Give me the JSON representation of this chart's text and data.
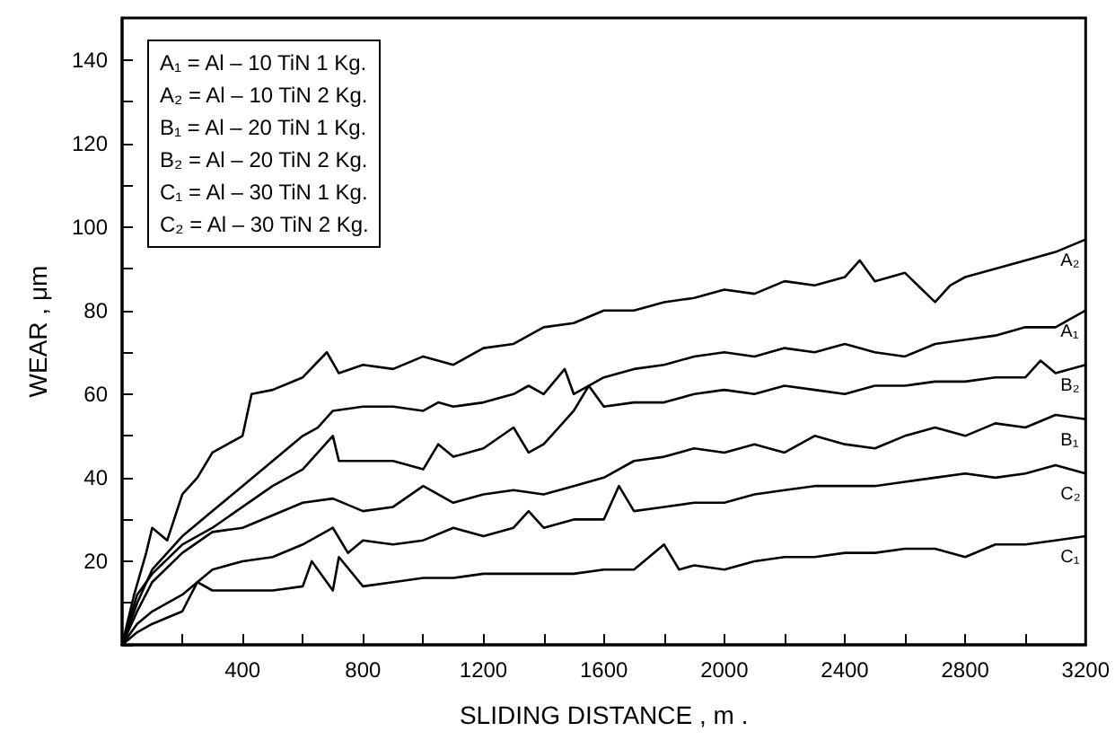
{
  "chart_data": {
    "type": "line",
    "xlabel": "SLIDING DISTANCE , m .",
    "ylabel": "WEAR , μm",
    "xlim": [
      0,
      3200
    ],
    "xticks": [
      {
        "value": 0,
        "label": null
      },
      {
        "value": 200,
        "label": null
      },
      400,
      {
        "value": 600,
        "label": null
      },
      800,
      {
        "value": 1000,
        "label": null
      },
      1200,
      {
        "value": 1400,
        "label": null
      },
      1600,
      {
        "value": 1800,
        "label": null
      },
      2000,
      {
        "value": 2200,
        "label": null
      },
      2400,
      {
        "value": 2600,
        "label": null
      },
      2800,
      {
        "value": 3000,
        "label": null
      },
      3200
    ],
    "ylim": [
      0,
      150
    ],
    "yticks": [
      {
        "value": 0,
        "label": null
      },
      {
        "value": 10,
        "label": null
      },
      20,
      {
        "value": 30,
        "label": null
      },
      40,
      {
        "value": 50,
        "label": null
      },
      60,
      {
        "value": 70,
        "label": null
      },
      80,
      {
        "value": 90,
        "label": null
      },
      100,
      {
        "value": 110,
        "label": null
      },
      120,
      {
        "value": 130,
        "label": null
      },
      140
    ],
    "grid": false,
    "legend": false,
    "marker": "none",
    "line_style": "solid",
    "annotations": [
      "A₁ = Al – 10 TiN 1 Kg.",
      "A₂ = Al – 10 TiN 2 Kg.",
      "B₁ = Al – 20 TiN 1 Kg.",
      "B₂ = Al – 20 TiN 2 Kg.",
      "C₁ = Al – 30 TiN 1 Kg.",
      "C₂ = Al – 30 TiN 2 Kg."
    ],
    "series": [
      {
        "name": "A₂",
        "color": "#000000",
        "x": [
          0,
          40,
          80,
          100,
          150,
          200,
          250,
          300,
          350,
          400,
          430,
          500,
          600,
          680,
          720,
          800,
          900,
          1000,
          1100,
          1200,
          1300,
          1400,
          1500,
          1600,
          1700,
          1800,
          1900,
          2000,
          2100,
          2200,
          2300,
          2400,
          2450,
          2500,
          2600,
          2700,
          2750,
          2800,
          2900,
          3000,
          3100,
          3200
        ],
        "values": [
          0,
          12,
          22,
          28,
          25,
          36,
          40,
          46,
          48,
          50,
          60,
          61,
          64,
          70,
          65,
          67,
          66,
          69,
          67,
          71,
          72,
          76,
          77,
          80,
          80,
          82,
          83,
          85,
          84,
          87,
          86,
          88,
          92,
          87,
          89,
          82,
          86,
          88,
          90,
          92,
          94,
          97
        ]
      },
      {
        "name": "A₁",
        "color": "#000000",
        "x": [
          0,
          50,
          100,
          200,
          300,
          400,
          500,
          600,
          650,
          700,
          800,
          900,
          1000,
          1050,
          1100,
          1200,
          1300,
          1350,
          1400,
          1470,
          1500,
          1600,
          1700,
          1800,
          1900,
          2000,
          2100,
          2200,
          2300,
          2400,
          2500,
          2600,
          2700,
          2800,
          2900,
          3000,
          3100,
          3200
        ],
        "values": [
          0,
          10,
          18,
          26,
          32,
          38,
          44,
          50,
          52,
          56,
          57,
          57,
          56,
          58,
          57,
          58,
          60,
          62,
          60,
          66,
          60,
          64,
          66,
          67,
          69,
          70,
          69,
          71,
          70,
          72,
          70,
          69,
          72,
          73,
          74,
          76,
          76,
          80
        ]
      },
      {
        "name": "B₂",
        "color": "#000000",
        "x": [
          0,
          50,
          100,
          200,
          300,
          400,
          500,
          600,
          700,
          720,
          800,
          900,
          1000,
          1050,
          1100,
          1200,
          1300,
          1350,
          1400,
          1450,
          1500,
          1550,
          1600,
          1700,
          1800,
          1900,
          2000,
          2100,
          2200,
          2300,
          2400,
          2500,
          2600,
          2700,
          2800,
          2900,
          3000,
          3050,
          3100,
          3200
        ],
        "values": [
          0,
          12,
          17,
          24,
          28,
          33,
          38,
          42,
          50,
          44,
          44,
          44,
          42,
          48,
          45,
          47,
          52,
          46,
          48,
          52,
          56,
          62,
          57,
          58,
          58,
          60,
          61,
          60,
          62,
          61,
          60,
          62,
          62,
          63,
          63,
          64,
          64,
          68,
          65,
          67
        ]
      },
      {
        "name": "B₁",
        "color": "#000000",
        "x": [
          0,
          50,
          100,
          200,
          300,
          400,
          500,
          600,
          700,
          800,
          900,
          1000,
          1100,
          1200,
          1300,
          1400,
          1500,
          1600,
          1700,
          1800,
          1900,
          2000,
          2100,
          2200,
          2300,
          2400,
          2500,
          2600,
          2700,
          2800,
          2900,
          3000,
          3100,
          3200
        ],
        "values": [
          0,
          8,
          15,
          22,
          27,
          28,
          31,
          34,
          35,
          32,
          33,
          38,
          34,
          36,
          37,
          36,
          38,
          40,
          44,
          45,
          47,
          46,
          48,
          46,
          50,
          48,
          47,
          50,
          52,
          50,
          53,
          52,
          55,
          54
        ]
      },
      {
        "name": "C₂",
        "color": "#000000",
        "x": [
          0,
          50,
          100,
          200,
          300,
          400,
          500,
          600,
          700,
          750,
          800,
          900,
          1000,
          1100,
          1200,
          1300,
          1350,
          1400,
          1500,
          1600,
          1650,
          1700,
          1800,
          1900,
          2000,
          2100,
          2200,
          2300,
          2400,
          2500,
          2600,
          2700,
          2800,
          2900,
          3000,
          3100,
          3200
        ],
        "values": [
          0,
          5,
          8,
          12,
          18,
          20,
          21,
          24,
          28,
          22,
          25,
          24,
          25,
          28,
          26,
          28,
          32,
          28,
          30,
          30,
          38,
          32,
          33,
          34,
          34,
          36,
          37,
          38,
          38,
          38,
          39,
          40,
          41,
          40,
          41,
          43,
          41
        ]
      },
      {
        "name": "C₁",
        "color": "#000000",
        "x": [
          0,
          50,
          100,
          200,
          250,
          300,
          400,
          500,
          600,
          630,
          700,
          720,
          800,
          900,
          1000,
          1100,
          1200,
          1300,
          1400,
          1500,
          1600,
          1700,
          1800,
          1850,
          1900,
          2000,
          2100,
          2200,
          2300,
          2400,
          2500,
          2600,
          2700,
          2800,
          2900,
          3000,
          3100,
          3200
        ],
        "values": [
          0,
          3,
          5,
          8,
          15,
          13,
          13,
          13,
          14,
          20,
          13,
          21,
          14,
          15,
          16,
          16,
          17,
          17,
          17,
          17,
          18,
          18,
          24,
          18,
          19,
          18,
          20,
          21,
          21,
          22,
          22,
          23,
          23,
          21,
          24,
          24,
          25,
          26
        ]
      }
    ]
  }
}
